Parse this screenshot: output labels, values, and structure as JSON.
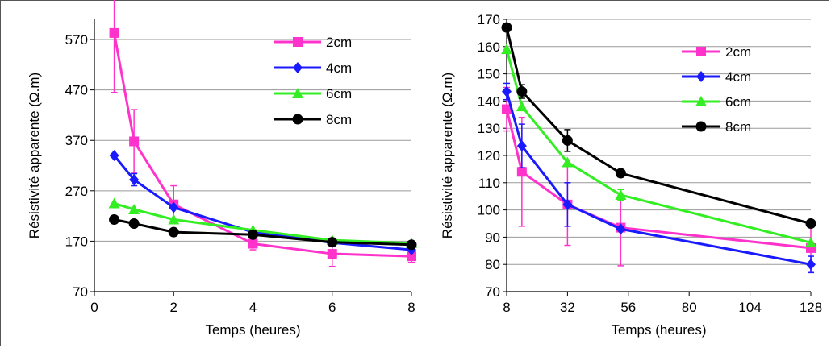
{
  "chart_data": [
    {
      "type": "line",
      "xlabel": "Temps (heures)",
      "ylabel": "Résistivité apparente  (Ω.m)",
      "xlim": [
        0,
        8
      ],
      "ylim": [
        70,
        610
      ],
      "xticks": [
        "0",
        "2",
        "4",
        "6",
        "8"
      ],
      "yticks": [
        "70",
        "170",
        "270",
        "370",
        "470",
        "570"
      ],
      "xtick_values": [
        0,
        2,
        4,
        6,
        8
      ],
      "ytick_values": [
        70,
        170,
        270,
        370,
        470,
        570
      ],
      "grid": "horizontal",
      "legend_position": "top-right",
      "series": [
        {
          "name": "2cm",
          "color": "#ff33cc",
          "marker": "square",
          "x": [
            0.5,
            1,
            2,
            4,
            6,
            8
          ],
          "y": [
            583,
            368,
            243,
            165,
            145,
            140
          ],
          "err": [
            118,
            63,
            37,
            12,
            25,
            12
          ]
        },
        {
          "name": "4cm",
          "color": "#1a1aff",
          "marker": "diamond",
          "x": [
            0.5,
            1,
            2,
            4,
            6,
            8
          ],
          "y": [
            340,
            292,
            237,
            188,
            167,
            153
          ],
          "err": [
            0,
            12,
            0,
            0,
            0,
            0
          ]
        },
        {
          "name": "6cm",
          "color": "#33ee22",
          "marker": "triangle",
          "x": [
            0.5,
            1,
            2,
            4,
            6,
            8
          ],
          "y": [
            245,
            233,
            213,
            192,
            172,
            166
          ],
          "err": [
            0,
            0,
            0,
            0,
            0,
            0
          ]
        },
        {
          "name": "8cm",
          "color": "#000000",
          "marker": "circle",
          "x": [
            0.5,
            1,
            2,
            4,
            6,
            8
          ],
          "y": [
            213,
            205,
            188,
            183,
            168,
            163
          ],
          "err": [
            0,
            0,
            0,
            0,
            0,
            0
          ]
        }
      ]
    },
    {
      "type": "line",
      "xlabel": "Temps (heures)",
      "ylabel": "Résistivité apparente  (Ω.m)",
      "xlim": [
        8,
        128
      ],
      "ylim": [
        70,
        170
      ],
      "xticks": [
        "8",
        "32",
        "56",
        "80",
        "104",
        "128"
      ],
      "yticks": [
        "70",
        "80",
        "90",
        "100",
        "110",
        "120",
        "130",
        "140",
        "150",
        "160",
        "170"
      ],
      "xtick_values": [
        8,
        32,
        56,
        80,
        104,
        128
      ],
      "ytick_values": [
        70,
        80,
        90,
        100,
        110,
        120,
        130,
        140,
        150,
        160,
        170
      ],
      "grid": "horizontal",
      "legend_position": "top-right",
      "series": [
        {
          "name": "2cm",
          "color": "#ff33cc",
          "marker": "square",
          "x": [
            8,
            14,
            32,
            53,
            128
          ],
          "y": [
            137,
            114,
            102,
            93.5,
            86
          ],
          "err": [
            8,
            20,
            15,
            14,
            9
          ]
        },
        {
          "name": "4cm",
          "color": "#1a1aff",
          "marker": "diamond",
          "x": [
            8,
            14,
            32,
            53,
            128
          ],
          "y": [
            143.5,
            123.5,
            102,
            93,
            80
          ],
          "err": [
            3,
            8,
            8,
            0,
            3
          ]
        },
        {
          "name": "6cm",
          "color": "#33ee22",
          "marker": "triangle",
          "x": [
            8,
            14,
            32,
            53,
            128
          ],
          "y": [
            159,
            138,
            117.5,
            105.5,
            88
          ],
          "err": [
            0,
            0,
            0,
            2,
            0
          ]
        },
        {
          "name": "8cm",
          "color": "#000000",
          "marker": "circle",
          "x": [
            8,
            14,
            32,
            53,
            128
          ],
          "y": [
            167,
            143.5,
            125.5,
            113.5,
            95
          ],
          "err": [
            1,
            2.5,
            4,
            0,
            0
          ]
        }
      ]
    }
  ]
}
